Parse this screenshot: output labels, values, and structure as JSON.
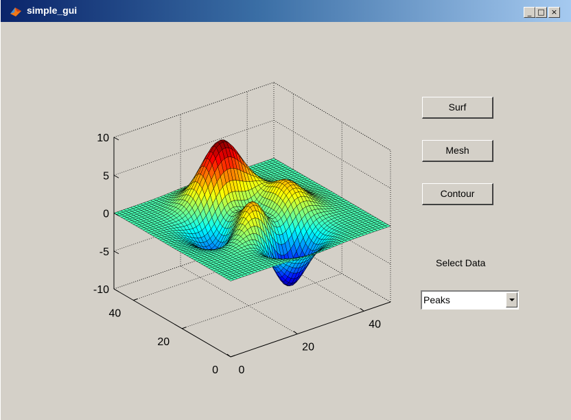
{
  "window": {
    "title": "simple_gui",
    "min_glyph": "_",
    "max_glyph": "□",
    "close_glyph": "×"
  },
  "buttons": {
    "surf": "Surf",
    "mesh": "Mesh",
    "contour": "Contour"
  },
  "data_select": {
    "label": "Select Data",
    "value": "Peaks",
    "icon": "chevron-down-icon"
  },
  "chart_data": {
    "type": "surface",
    "function": "peaks",
    "grid_size": 49,
    "x_ticks": [
      "0",
      "20",
      "40"
    ],
    "y_ticks": [
      "0",
      "20",
      "40"
    ],
    "z_ticks": [
      "-10",
      "-5",
      "0",
      "5",
      "10"
    ],
    "xlim": [
      0,
      49
    ],
    "ylim": [
      0,
      49
    ],
    "zlim": [
      -10,
      10
    ],
    "colormap": "jet",
    "grid": true
  }
}
